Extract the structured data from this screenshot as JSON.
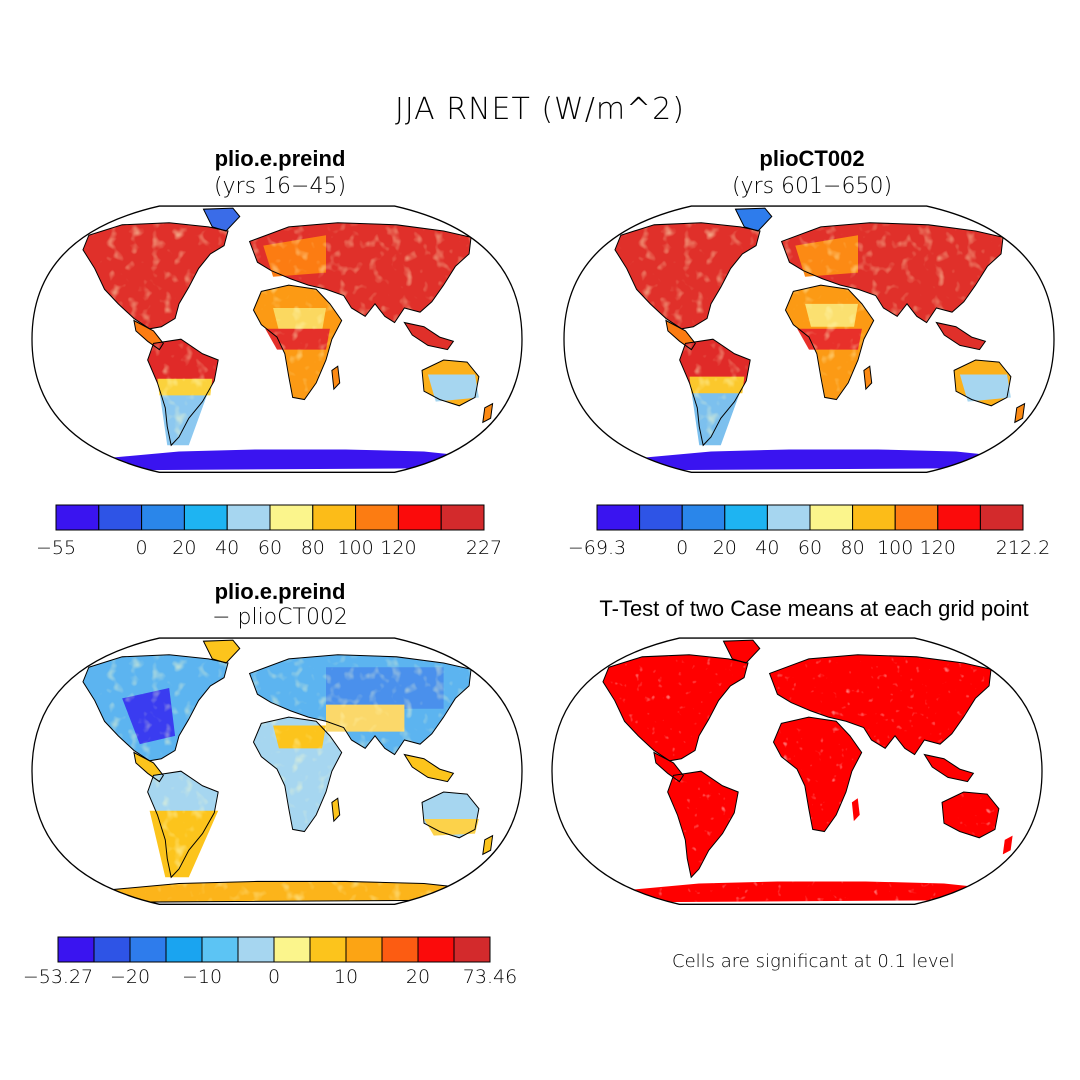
{
  "main_title": "JJA RNET (W/m^2)",
  "panels": [
    {
      "title": "plio.e.preind",
      "subtitle": "(yrs 16−45)",
      "colorbar": {
        "labels": [
          "−55",
          "0",
          "20",
          "40",
          "60",
          "80",
          "100",
          "120",
          "227"
        ],
        "colors": [
          "#3a14f0",
          "#2e54e6",
          "#2a86ea",
          "#1eb4f2",
          "#a6d6f0",
          "#fbf58c",
          "#fcbc18",
          "#fc7c12",
          "#fb0b0b",
          "#d32a2c"
        ]
      }
    },
    {
      "title": "plioCT002",
      "subtitle": "(yrs 601−650)",
      "colorbar": {
        "labels": [
          "−69.3",
          "0",
          "20",
          "40",
          "60",
          "80",
          "100",
          "120",
          "212.2"
        ],
        "colors": [
          "#3a14f0",
          "#2e54e6",
          "#2a86ea",
          "#1eb4f2",
          "#a6d6f0",
          "#fbf58c",
          "#fcbc18",
          "#fc7c12",
          "#fb0b0b",
          "#d32a2c"
        ]
      }
    },
    {
      "title": "plio.e.preind",
      "subtitle": "− plioCT002",
      "colorbar": {
        "labels": [
          "−53.27",
          "−20",
          "−10",
          "0",
          "10",
          "20",
          "73.46"
        ],
        "colors": [
          "#3a14f0",
          "#2e54e6",
          "#2e7cec",
          "#1aa4f0",
          "#5cc4f4",
          "#a6d6f0",
          "#fbf58c",
          "#fcc41c",
          "#fca414",
          "#fc5c12",
          "#fb0b0b",
          "#d32a2c"
        ]
      }
    },
    {
      "title": "T-Test of two Case means at each grid point",
      "note": "Cells are significant at 0.1 level",
      "fill": "#ff0000"
    }
  ]
}
